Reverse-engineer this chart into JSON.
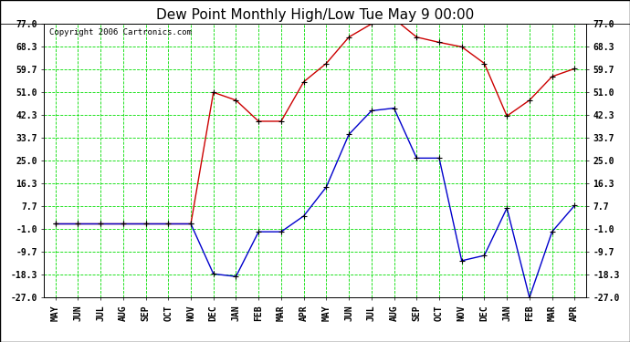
{
  "title": "Dew Point Monthly High/Low Tue May 9 00:00",
  "copyright": "Copyright 2006 Cartronics.com",
  "x_labels": [
    "MAY",
    "JUN",
    "JUL",
    "AUG",
    "SEP",
    "OCT",
    "NOV",
    "DEC",
    "JAN",
    "FEB",
    "MAR",
    "APR",
    "MAY",
    "JUN",
    "JUL",
    "AUG",
    "SEP",
    "OCT",
    "NOV",
    "DEC",
    "JAN",
    "FEB",
    "MAR",
    "APR"
  ],
  "high_values": [
    1.0,
    1.0,
    1.0,
    1.0,
    1.0,
    1.0,
    1.0,
    51.0,
    48.0,
    40.0,
    40.0,
    55.0,
    62.0,
    72.0,
    77.0,
    79.0,
    72.0,
    70.0,
    68.3,
    62.0,
    42.0,
    48.0,
    57.0,
    60.0
  ],
  "low_values": [
    1.0,
    1.0,
    1.0,
    1.0,
    1.0,
    1.0,
    1.0,
    -18.0,
    -19.0,
    -2.0,
    -2.0,
    4.0,
    15.0,
    35.0,
    44.0,
    45.0,
    26.0,
    26.0,
    -13.0,
    -11.0,
    7.0,
    -27.0,
    -2.0,
    8.0
  ],
  "y_ticks": [
    -27.0,
    -18.3,
    -9.7,
    -1.0,
    7.7,
    16.3,
    25.0,
    33.7,
    42.3,
    51.0,
    59.7,
    68.3,
    77.0
  ],
  "ylim": [
    -27.0,
    77.0
  ],
  "bg_color": "#ffffff",
  "plot_bg_color": "#ffffff",
  "grid_color": "#00dd00",
  "high_color": "#cc0000",
  "low_color": "#0000cc",
  "marker_color": "#000000",
  "title_fontsize": 11,
  "tick_fontsize": 7,
  "copyright_fontsize": 6.5
}
